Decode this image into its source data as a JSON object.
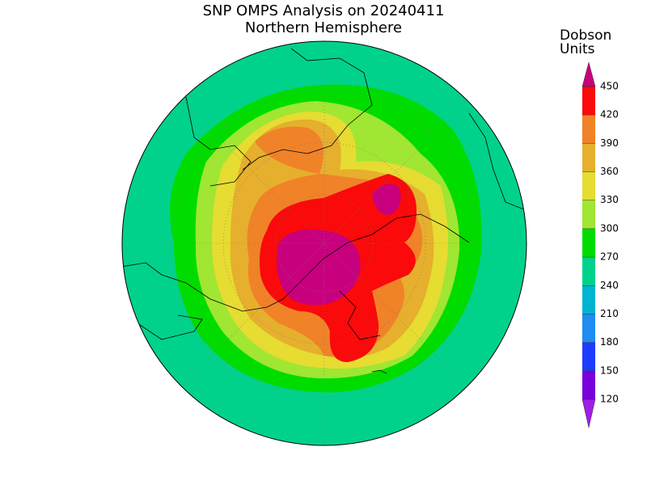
{
  "title": "SNP OMPS Analysis on 20240411",
  "subtitle": "Northern Hemisphere",
  "colorbar": {
    "label": [
      "Dobson",
      "Units"
    ],
    "ticks": [
      120,
      150,
      180,
      210,
      240,
      270,
      300,
      330,
      360,
      390,
      420,
      450
    ],
    "colors": [
      "#a01ee6",
      "#7800dc",
      "#1e3cff",
      "#1e8cf0",
      "#00b4d2",
      "#00d28c",
      "#00dc00",
      "#a0e632",
      "#e6dc32",
      "#e6af2d",
      "#f08228",
      "#fa0a0a",
      "#c8007d"
    ]
  }
}
